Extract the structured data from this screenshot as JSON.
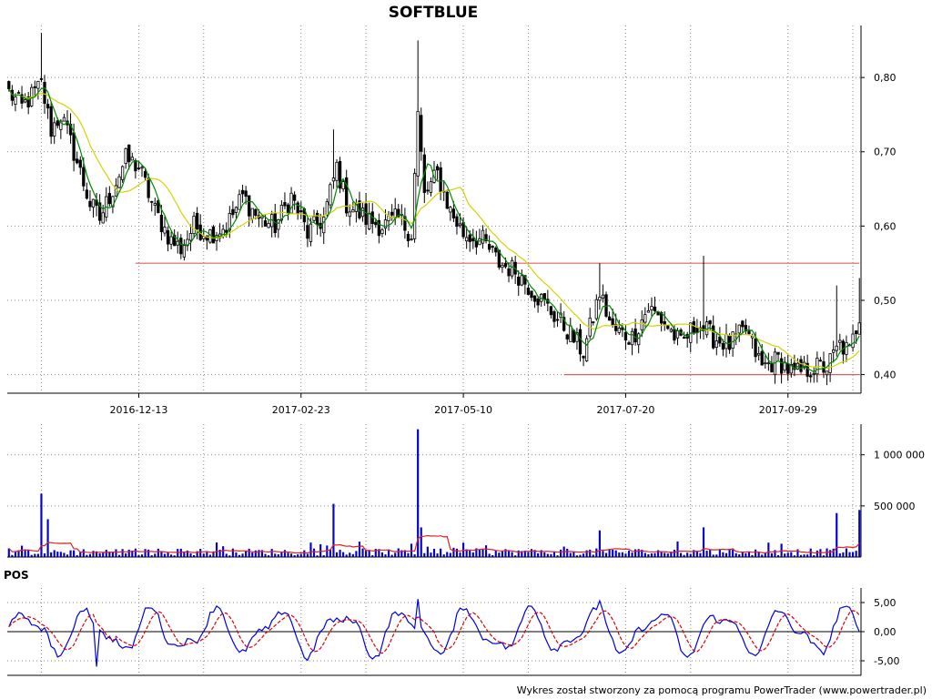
{
  "chart_data": {
    "type": "candlestick",
    "title": "SOFTBLUE",
    "footer": "Wykres został stworzony za pomocą programu PowerTrader (www.powertrader.pl)",
    "colors": {
      "up": "#ffffff",
      "down": "#000000",
      "ma_short": "#008800",
      "ma_long": "#d4d400",
      "hline": "#e06060",
      "volume": "#0000cc",
      "volume_ma": "#e02020",
      "pos": "#0000dd",
      "pos_signal": "#dd0000",
      "grid": "#888888"
    },
    "price": {
      "ylim": [
        0.375,
        0.87
      ],
      "yticks": [
        {
          "value": 0.8,
          "label": "0,80"
        },
        {
          "value": 0.7,
          "label": "0,70"
        },
        {
          "value": 0.6,
          "label": "0,60"
        },
        {
          "value": 0.5,
          "label": "0,50"
        },
        {
          "value": 0.4,
          "label": "0,40"
        }
      ],
      "xticks": [
        {
          "index": 40,
          "label": "2016-12-13"
        },
        {
          "index": 90,
          "label": "2017-02-23"
        },
        {
          "index": 140,
          "label": "2017-05-10"
        },
        {
          "index": 190,
          "label": "2017-07-20"
        },
        {
          "index": 240,
          "label": "2017-09-29"
        }
      ],
      "hlines": [
        {
          "value": 0.55,
          "from_index": 39,
          "to_index": 262
        },
        {
          "value": 0.4,
          "from_index": 171,
          "to_index": 262
        }
      ],
      "anchors": [
        [
          0,
          0.78
        ],
        [
          4,
          0.76
        ],
        [
          10,
          0.79
        ],
        [
          13,
          0.73
        ],
        [
          16,
          0.75
        ],
        [
          20,
          0.7
        ],
        [
          25,
          0.63
        ],
        [
          28,
          0.61
        ],
        [
          31,
          0.64
        ],
        [
          36,
          0.69
        ],
        [
          40,
          0.68
        ],
        [
          45,
          0.62
        ],
        [
          50,
          0.58
        ],
        [
          53,
          0.57
        ],
        [
          57,
          0.6
        ],
        [
          62,
          0.59
        ],
        [
          67,
          0.6
        ],
        [
          72,
          0.64
        ],
        [
          77,
          0.61
        ],
        [
          82,
          0.6
        ],
        [
          87,
          0.64
        ],
        [
          92,
          0.59
        ],
        [
          97,
          0.61
        ],
        [
          101,
          0.68
        ],
        [
          104,
          0.63
        ],
        [
          110,
          0.61
        ],
        [
          115,
          0.6
        ],
        [
          120,
          0.61
        ],
        [
          124,
          0.59
        ],
        [
          126,
          0.75
        ],
        [
          128,
          0.64
        ],
        [
          132,
          0.67
        ],
        [
          136,
          0.62
        ],
        [
          140,
          0.59
        ],
        [
          146,
          0.58
        ],
        [
          151,
          0.55
        ],
        [
          156,
          0.54
        ],
        [
          160,
          0.52
        ],
        [
          166,
          0.49
        ],
        [
          172,
          0.46
        ],
        [
          177,
          0.43
        ],
        [
          182,
          0.51
        ],
        [
          186,
          0.46
        ],
        [
          192,
          0.45
        ],
        [
          197,
          0.49
        ],
        [
          202,
          0.47
        ],
        [
          207,
          0.44
        ],
        [
          212,
          0.47
        ],
        [
          217,
          0.45
        ],
        [
          222,
          0.44
        ],
        [
          227,
          0.46
        ],
        [
          232,
          0.41
        ],
        [
          237,
          0.42
        ],
        [
          242,
          0.4
        ],
        [
          248,
          0.41
        ],
        [
          252,
          0.41
        ],
        [
          256,
          0.44
        ],
        [
          259,
          0.43
        ],
        [
          262,
          0.48
        ]
      ],
      "spikes": [
        {
          "index": 10,
          "high": 0.86
        },
        {
          "index": 100,
          "high": 0.73
        },
        {
          "index": 126,
          "high": 0.85
        },
        {
          "index": 182,
          "high": 0.55
        },
        {
          "index": 214,
          "high": 0.56
        },
        {
          "index": 255,
          "high": 0.52
        },
        {
          "index": 262,
          "high": 0.53
        }
      ],
      "n": 263
    },
    "volume": {
      "ylim": [
        0,
        1300000
      ],
      "yticks": [
        {
          "value": 1000000,
          "label": "1 000 000"
        },
        {
          "value": 500000,
          "label": "500 000"
        }
      ],
      "spikes": [
        {
          "index": 10,
          "value": 620000
        },
        {
          "index": 12,
          "value": 370000
        },
        {
          "index": 100,
          "value": 520000
        },
        {
          "index": 126,
          "value": 1250000
        },
        {
          "index": 127,
          "value": 290000
        },
        {
          "index": 182,
          "value": 260000
        },
        {
          "index": 214,
          "value": 290000
        },
        {
          "index": 255,
          "value": 430000
        },
        {
          "index": 262,
          "value": 460000
        }
      ]
    },
    "pos": {
      "label": "POS",
      "ylim": [
        -7.5,
        7.5
      ],
      "yticks": [
        {
          "value": 5,
          "label": "5,00"
        },
        {
          "value": 0,
          "label": "0,00"
        },
        {
          "value": -5,
          "label": "-5,00"
        }
      ]
    }
  }
}
